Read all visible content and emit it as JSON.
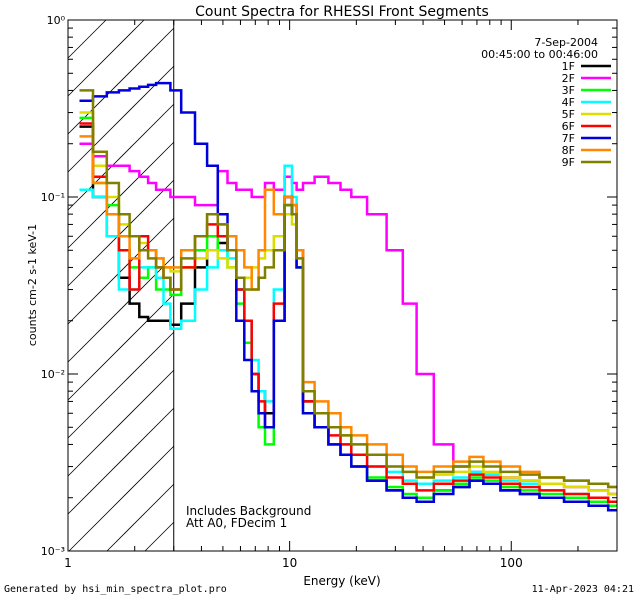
{
  "chart_data": {
    "type": "line",
    "title": "Count Spectra for RHESSI Front Segments",
    "xlabel": "Energy (keV)",
    "ylabel": "counts cm-2 s-1 keV-1",
    "xscale": "log",
    "yscale": "log",
    "xlim": [
      1,
      300
    ],
    "ylim": [
      0.001,
      1
    ],
    "x_ticks": [
      1,
      10,
      100
    ],
    "x_tick_labels": [
      "1",
      "10",
      "100"
    ],
    "y_ticks": [
      0.001,
      0.01,
      0.1,
      1
    ],
    "y_tick_labels": [
      "10⁻³",
      "10⁻²",
      "10⁻¹",
      "10⁰"
    ],
    "date": "7-Sep-2004",
    "time_range": "00:45:00 to 00:46:00",
    "hatched_region": [
      1,
      3
    ],
    "annotations": [
      "Includes Background",
      "Att A0, FDecim 1"
    ],
    "series": [
      {
        "name": "1F",
        "color": "#000000",
        "x": [
          1.2,
          1.4,
          1.6,
          1.8,
          2.0,
          2.2,
          2.4,
          2.6,
          2.8,
          3.0,
          3.5,
          4.0,
          4.5,
          5.0,
          5.5,
          6.0,
          6.5,
          7.0,
          7.5,
          8.0,
          9.0,
          10.0,
          10.5,
          11.0,
          12,
          14,
          16,
          18,
          20,
          25,
          30,
          35,
          40,
          50,
          60,
          70,
          80,
          100,
          120,
          150,
          200,
          250,
          300
        ],
        "values": [
          0.25,
          0.1,
          0.06,
          0.035,
          0.025,
          0.021,
          0.02,
          0.02,
          0.02,
          0.019,
          0.025,
          0.04,
          0.05,
          0.055,
          0.05,
          0.03,
          0.02,
          0.01,
          0.008,
          0.006,
          0.02,
          0.09,
          0.08,
          0.04,
          0.007,
          0.005,
          0.004,
          0.0035,
          0.003,
          0.0025,
          0.0022,
          0.002,
          0.002,
          0.0022,
          0.0023,
          0.0025,
          0.0024,
          0.0022,
          0.0021,
          0.002,
          0.0019,
          0.0018,
          0.0017
        ]
      },
      {
        "name": "2F",
        "color": "#ff00ff",
        "x": [
          1.2,
          1.4,
          1.6,
          1.8,
          2.0,
          2.2,
          2.4,
          2.6,
          2.8,
          3.0,
          3.5,
          4.0,
          4.5,
          5.0,
          5.5,
          6.0,
          6.5,
          7.0,
          7.5,
          8.0,
          9.0,
          10.0,
          10.5,
          11.0,
          12,
          14,
          16,
          18,
          20,
          25,
          30,
          35,
          40,
          50,
          60,
          70,
          80,
          100,
          120,
          150,
          200,
          250,
          300
        ],
        "values": [
          0.2,
          0.17,
          0.15,
          0.15,
          0.14,
          0.13,
          0.12,
          0.11,
          0.11,
          0.1,
          0.1,
          0.09,
          0.09,
          0.14,
          0.12,
          0.11,
          0.11,
          0.1,
          0.1,
          0.12,
          0.11,
          0.13,
          0.12,
          0.11,
          0.12,
          0.13,
          0.12,
          0.11,
          0.1,
          0.08,
          0.05,
          0.025,
          0.01,
          0.004,
          0.003,
          0.0028,
          0.0027,
          0.0026,
          0.0025,
          0.0024,
          0.0023,
          0.0022,
          0.0021
        ]
      },
      {
        "name": "3F",
        "color": "#00ff00",
        "x": [
          1.2,
          1.4,
          1.6,
          1.8,
          2.0,
          2.2,
          2.4,
          2.6,
          2.8,
          3.0,
          3.5,
          4.0,
          4.5,
          5.0,
          5.5,
          6.0,
          6.5,
          7.0,
          7.5,
          8.0,
          9.0,
          10.0,
          10.5,
          11.0,
          12,
          14,
          16,
          18,
          20,
          25,
          30,
          35,
          40,
          50,
          60,
          70,
          80,
          100,
          120,
          150,
          200,
          250,
          300
        ],
        "values": [
          0.28,
          0.12,
          0.09,
          0.05,
          0.04,
          0.035,
          0.04,
          0.03,
          0.03,
          0.028,
          0.04,
          0.05,
          0.06,
          0.05,
          0.04,
          0.025,
          0.015,
          0.008,
          0.005,
          0.004,
          0.02,
          0.09,
          0.08,
          0.04,
          0.006,
          0.005,
          0.004,
          0.0035,
          0.003,
          0.0026,
          0.0023,
          0.0021,
          0.002,
          0.0022,
          0.0024,
          0.0026,
          0.0025,
          0.0023,
          0.0022,
          0.0021,
          0.002,
          0.0019,
          0.0018
        ]
      },
      {
        "name": "4F",
        "color": "#00ffff",
        "x": [
          1.2,
          1.4,
          1.6,
          1.8,
          2.0,
          2.2,
          2.4,
          2.6,
          2.8,
          3.0,
          3.5,
          4.0,
          4.5,
          5.0,
          5.5,
          6.0,
          6.5,
          7.0,
          7.5,
          8.0,
          9.0,
          10.0,
          10.5,
          11.0,
          12,
          14,
          16,
          18,
          20,
          25,
          30,
          35,
          40,
          50,
          60,
          70,
          80,
          100,
          120,
          150,
          200,
          250,
          300
        ],
        "values": [
          0.11,
          0.1,
          0.06,
          0.03,
          0.03,
          0.04,
          0.04,
          0.035,
          0.025,
          0.018,
          0.02,
          0.03,
          0.04,
          0.05,
          0.045,
          0.03,
          0.02,
          0.012,
          0.008,
          0.007,
          0.03,
          0.15,
          0.1,
          0.05,
          0.008,
          0.006,
          0.005,
          0.004,
          0.0035,
          0.003,
          0.0028,
          0.0025,
          0.0024,
          0.0025,
          0.0026,
          0.0028,
          0.0027,
          0.0025,
          0.0024,
          0.0022,
          0.0021,
          0.002,
          0.0019
        ]
      },
      {
        "name": "5F",
        "color": "#dddd00",
        "x": [
          1.2,
          1.4,
          1.6,
          1.8,
          2.0,
          2.2,
          2.4,
          2.6,
          2.8,
          3.0,
          3.5,
          4.0,
          4.5,
          5.0,
          5.5,
          6.0,
          6.5,
          7.0,
          7.5,
          8.0,
          9.0,
          10.0,
          10.5,
          11.0,
          12,
          14,
          16,
          18,
          20,
          25,
          30,
          35,
          40,
          50,
          60,
          70,
          80,
          100,
          120,
          150,
          200,
          250,
          300
        ],
        "values": [
          0.3,
          0.15,
          0.1,
          0.07,
          0.06,
          0.055,
          0.05,
          0.045,
          0.04,
          0.038,
          0.04,
          0.045,
          0.05,
          0.045,
          0.04,
          0.035,
          0.035,
          0.04,
          0.045,
          0.05,
          0.06,
          0.08,
          0.07,
          0.04,
          0.008,
          0.006,
          0.005,
          0.0045,
          0.004,
          0.0035,
          0.003,
          0.0028,
          0.0026,
          0.0027,
          0.0028,
          0.003,
          0.0028,
          0.0026,
          0.0025,
          0.0024,
          0.0023,
          0.0022,
          0.0021
        ]
      },
      {
        "name": "6F",
        "color": "#ff0000",
        "x": [
          1.2,
          1.4,
          1.6,
          1.8,
          2.0,
          2.2,
          2.4,
          2.6,
          2.8,
          3.0,
          3.5,
          4.0,
          4.5,
          5.0,
          5.5,
          6.0,
          6.5,
          7.0,
          7.5,
          8.0,
          9.0,
          10.0,
          10.5,
          11.0,
          12,
          14,
          16,
          18,
          20,
          25,
          30,
          35,
          40,
          50,
          60,
          70,
          80,
          100,
          120,
          150,
          200,
          250,
          300
        ],
        "values": [
          0.26,
          0.13,
          0.08,
          0.05,
          0.03,
          0.06,
          0.05,
          0.04,
          0.035,
          0.03,
          0.04,
          0.06,
          0.07,
          0.06,
          0.05,
          0.03,
          0.02,
          0.01,
          0.007,
          0.005,
          0.025,
          0.1,
          0.09,
          0.05,
          0.007,
          0.005,
          0.0045,
          0.004,
          0.0035,
          0.003,
          0.0026,
          0.0024,
          0.0022,
          0.0024,
          0.0025,
          0.0027,
          0.0026,
          0.0024,
          0.0023,
          0.0022,
          0.0021,
          0.002,
          0.0019
        ]
      },
      {
        "name": "7F",
        "color": "#0000dd",
        "x": [
          1.2,
          1.4,
          1.6,
          1.8,
          2.0,
          2.2,
          2.4,
          2.6,
          2.8,
          3.0,
          3.5,
          4.0,
          4.5,
          5.0,
          5.5,
          6.0,
          6.5,
          7.0,
          7.5,
          8.0,
          9.0,
          10.0,
          10.5,
          11.0,
          12,
          14,
          16,
          18,
          20,
          25,
          30,
          35,
          40,
          50,
          60,
          70,
          80,
          100,
          120,
          150,
          200,
          250,
          300
        ],
        "values": [
          0.35,
          0.37,
          0.39,
          0.4,
          0.41,
          0.42,
          0.43,
          0.44,
          0.44,
          0.4,
          0.3,
          0.2,
          0.15,
          0.08,
          0.05,
          0.02,
          0.012,
          0.008,
          0.006,
          0.005,
          0.02,
          0.1,
          0.08,
          0.04,
          0.006,
          0.005,
          0.004,
          0.0035,
          0.003,
          0.0025,
          0.0022,
          0.002,
          0.0019,
          0.0021,
          0.0023,
          0.0025,
          0.0024,
          0.0022,
          0.0021,
          0.002,
          0.0019,
          0.0018,
          0.0017
        ]
      },
      {
        "name": "8F",
        "color": "#ff8800",
        "x": [
          1.2,
          1.4,
          1.6,
          1.8,
          2.0,
          2.2,
          2.4,
          2.6,
          2.8,
          3.0,
          3.5,
          4.0,
          4.5,
          5.0,
          5.5,
          6.0,
          6.5,
          7.0,
          7.5,
          8.0,
          9.0,
          10.0,
          10.5,
          11.0,
          12,
          14,
          16,
          18,
          20,
          25,
          30,
          35,
          40,
          50,
          60,
          70,
          80,
          100,
          120,
          150,
          200,
          250,
          300
        ],
        "values": [
          0.22,
          0.12,
          0.08,
          0.06,
          0.045,
          0.05,
          0.05,
          0.045,
          0.04,
          0.04,
          0.05,
          0.06,
          0.08,
          0.07,
          0.06,
          0.05,
          0.04,
          0.03,
          0.05,
          0.11,
          0.08,
          0.1,
          0.09,
          0.05,
          0.009,
          0.007,
          0.006,
          0.005,
          0.0045,
          0.004,
          0.0035,
          0.003,
          0.0028,
          0.003,
          0.0032,
          0.0034,
          0.0032,
          0.003,
          0.0028,
          0.0026,
          0.0025,
          0.0024,
          0.0023
        ]
      },
      {
        "name": "9F",
        "color": "#808000",
        "x": [
          1.2,
          1.4,
          1.6,
          1.8,
          2.0,
          2.2,
          2.4,
          2.6,
          2.8,
          3.0,
          3.5,
          4.0,
          4.5,
          5.0,
          5.5,
          6.0,
          6.5,
          7.0,
          7.5,
          8.0,
          9.0,
          10.0,
          10.5,
          11.0,
          12,
          14,
          16,
          18,
          20,
          25,
          30,
          35,
          40,
          50,
          60,
          70,
          80,
          100,
          120,
          150,
          200,
          250,
          300
        ],
        "values": [
          0.4,
          0.18,
          0.12,
          0.08,
          0.06,
          0.05,
          0.045,
          0.04,
          0.035,
          0.03,
          0.045,
          0.06,
          0.08,
          0.07,
          0.05,
          0.035,
          0.03,
          0.03,
          0.035,
          0.04,
          0.05,
          0.09,
          0.08,
          0.045,
          0.008,
          0.006,
          0.005,
          0.0045,
          0.004,
          0.0035,
          0.003,
          0.0028,
          0.0026,
          0.0028,
          0.003,
          0.0032,
          0.003,
          0.0028,
          0.0027,
          0.0026,
          0.0025,
          0.0024,
          0.0023
        ]
      }
    ]
  },
  "footer": {
    "generated_by": "Generated by hsi_min_spectra_plot.pro",
    "timestamp": "11-Apr-2023 04:21"
  }
}
